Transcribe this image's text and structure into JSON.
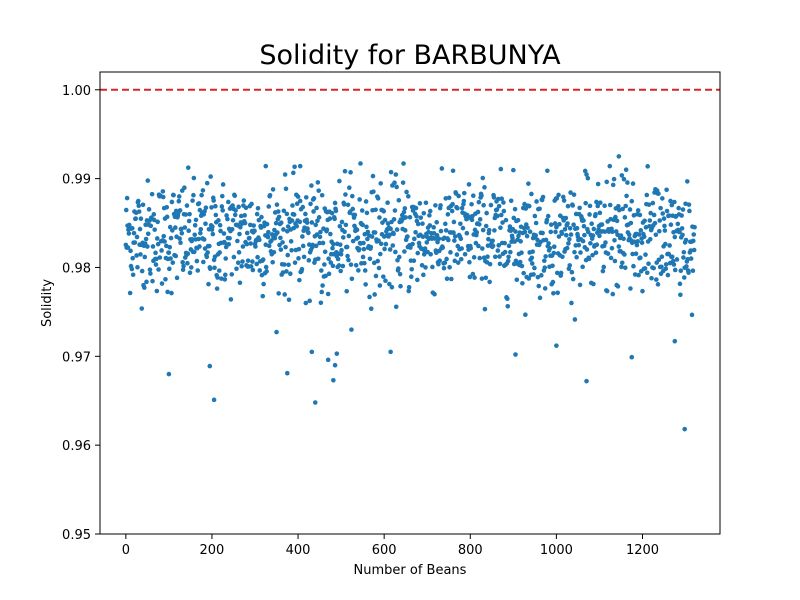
{
  "chart_data": {
    "type": "scatter",
    "title": "Solidity for BARBUNYA",
    "xlabel": "Number of Beans",
    "ylabel": "Solidity",
    "xlim": [
      -60,
      1380
    ],
    "ylim": [
      0.95,
      1.002
    ],
    "xticks": [
      0,
      200,
      400,
      600,
      800,
      1000,
      1200
    ],
    "xtick_labels": [
      "0",
      "200",
      "400",
      "600",
      "800",
      "1000",
      "1200"
    ],
    "yticks": [
      0.95,
      0.96,
      0.97,
      0.98,
      0.99,
      1.0
    ],
    "ytick_labels": [
      "0.95",
      "0.96",
      "0.97",
      "0.98",
      "0.99",
      "1.00"
    ],
    "reference_line": {
      "y": 1.0,
      "style": "dashed",
      "color": "#d62728"
    },
    "grid": false,
    "legend": "none",
    "marker_color": "#1f77b4",
    "series": [
      {
        "n_points": 1322,
        "x_start": 0,
        "x_step": 1,
        "y_center": 0.9835,
        "y_typical_range": [
          0.977,
          0.99
        ],
        "y_max": 0.9925,
        "y_min": 0.9618,
        "outliers": [
          {
            "x": 100,
            "y": 0.968
          },
          {
            "x": 195,
            "y": 0.9689
          },
          {
            "x": 205,
            "y": 0.9651
          },
          {
            "x": 375,
            "y": 0.9681
          },
          {
            "x": 432,
            "y": 0.9705
          },
          {
            "x": 440,
            "y": 0.9648
          },
          {
            "x": 470,
            "y": 0.9696
          },
          {
            "x": 482,
            "y": 0.9673
          },
          {
            "x": 486,
            "y": 0.969
          },
          {
            "x": 490,
            "y": 0.9703
          },
          {
            "x": 615,
            "y": 0.9705
          },
          {
            "x": 905,
            "y": 0.9702
          },
          {
            "x": 1000,
            "y": 0.9712
          },
          {
            "x": 1070,
            "y": 0.9672
          },
          {
            "x": 1175,
            "y": 0.9699
          },
          {
            "x": 1275,
            "y": 0.9717
          },
          {
            "x": 1298,
            "y": 0.9618
          },
          {
            "x": 1145,
            "y": 0.9925
          },
          {
            "x": 545,
            "y": 0.9917
          },
          {
            "x": 645,
            "y": 0.9917
          },
          {
            "x": 405,
            "y": 0.9914
          },
          {
            "x": 325,
            "y": 0.9914
          }
        ]
      }
    ]
  }
}
